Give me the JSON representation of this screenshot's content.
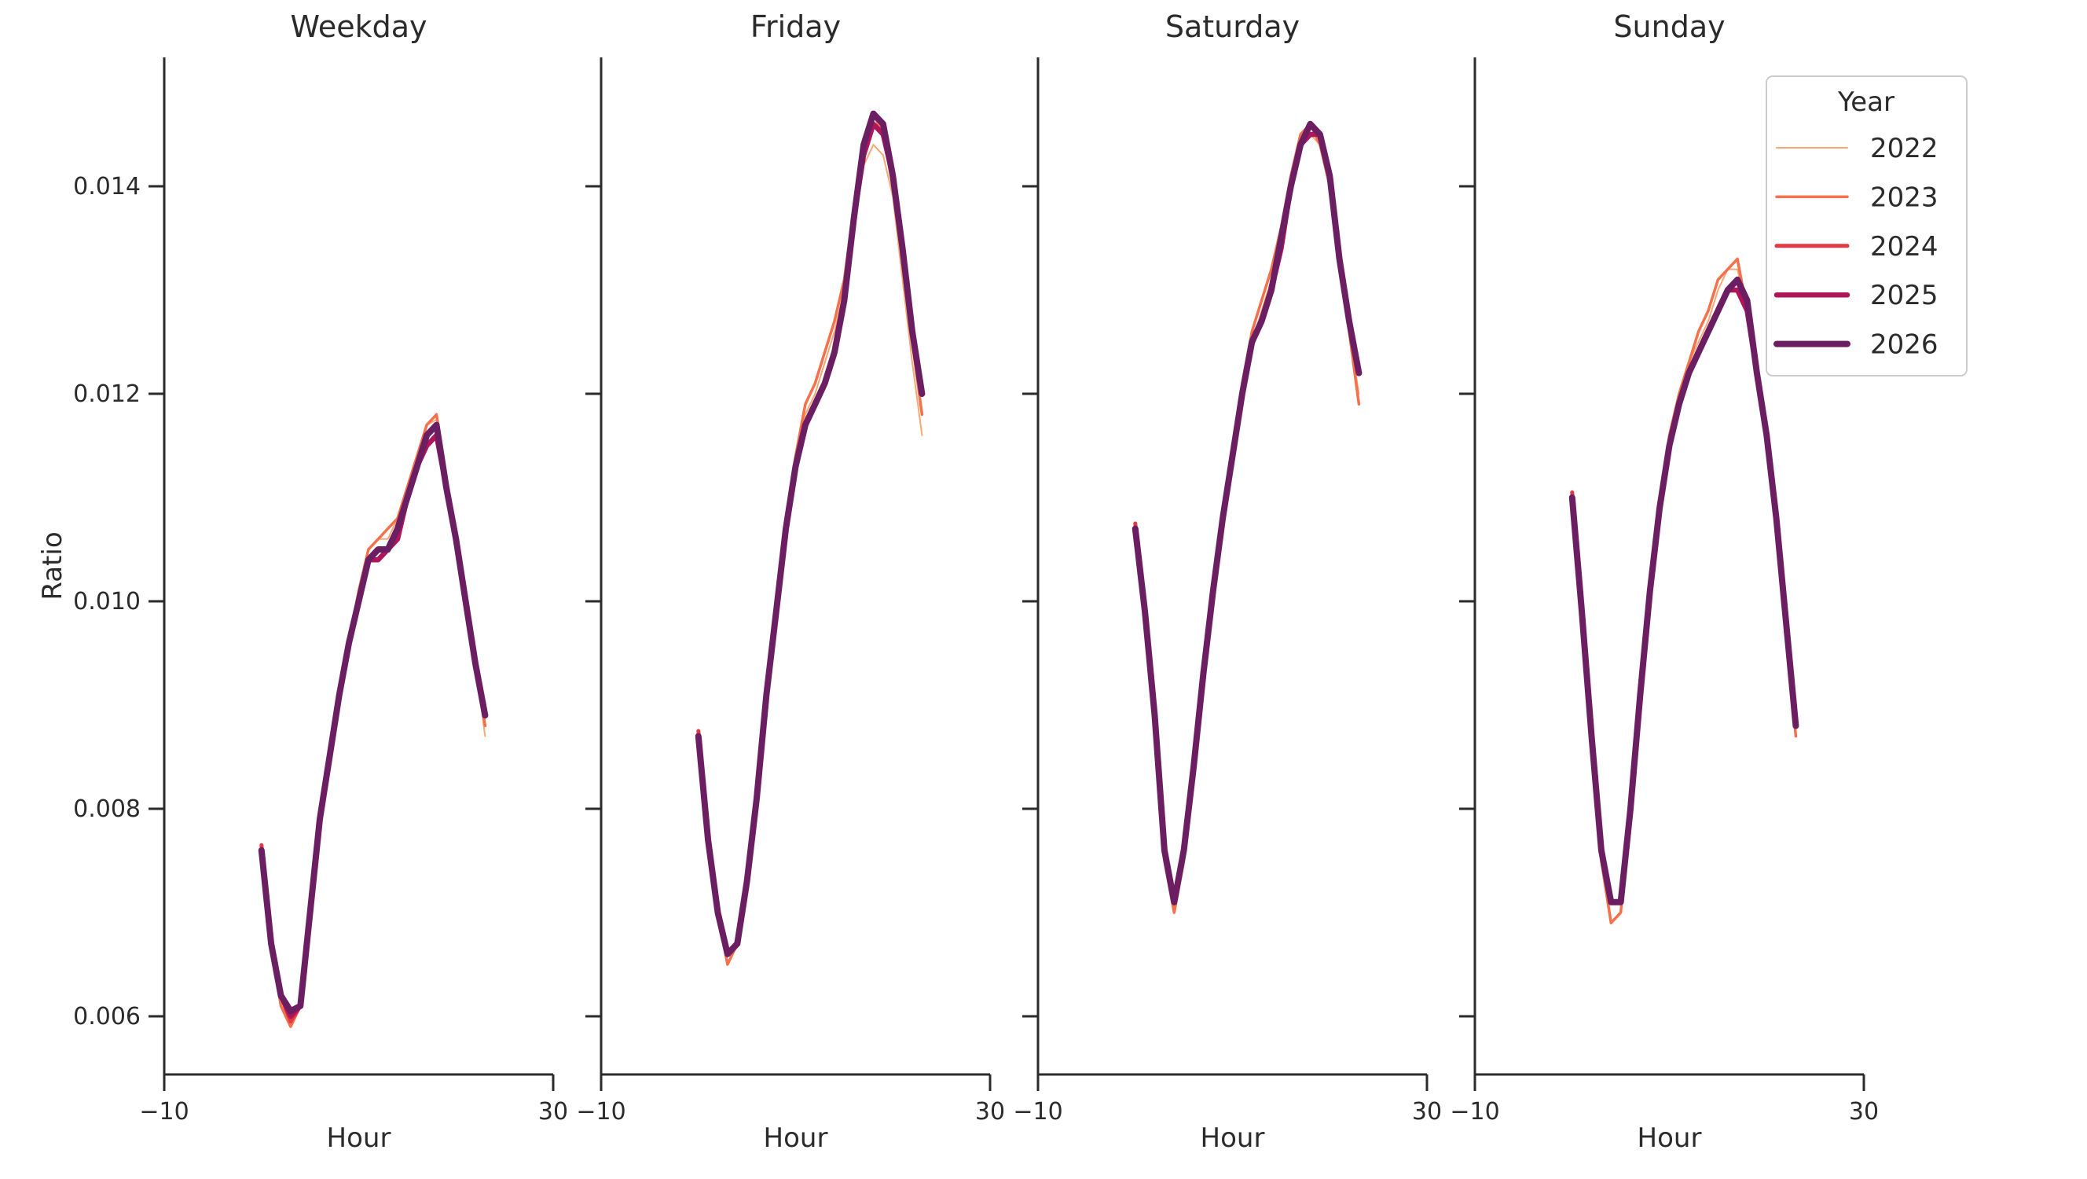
{
  "figure": {
    "background": "#ffffff",
    "text_color": "#2b2b2b",
    "spine_color": "#2b2b2b"
  },
  "legend": {
    "title": "Year",
    "entries": [
      {
        "label": "2022",
        "color": "#F8A873",
        "line_width": 2
      },
      {
        "label": "2023",
        "color": "#F4714C",
        "line_width": 3.5
      },
      {
        "label": "2024",
        "color": "#E23A45",
        "line_width": 5
      },
      {
        "label": "2025",
        "color": "#AE1659",
        "line_width": 6.5
      },
      {
        "label": "2026",
        "color": "#6C1E63",
        "line_width": 8
      }
    ]
  },
  "chart_data": {
    "type": "line",
    "xlabel": "Hour",
    "ylabel": "Ratio",
    "xlim": [
      -10,
      30
    ],
    "ylim": [
      0.0054,
      0.0152
    ],
    "x_ticks": [
      -10,
      30
    ],
    "x_tick_labels": [
      "−10",
      "30"
    ],
    "y_ticks": [
      0.006,
      0.008,
      0.01,
      0.012,
      0.014
    ],
    "y_tick_labels": [
      "0.006",
      "0.008",
      "0.010",
      "0.012",
      "0.014"
    ],
    "grid": false,
    "legend_position": "upper-right-of-last-panel",
    "x": [
      0,
      1,
      2,
      3,
      4,
      5,
      6,
      7,
      8,
      9,
      10,
      11,
      12,
      13,
      14,
      15,
      16,
      17,
      18,
      19,
      20,
      21,
      22,
      23
    ],
    "panels": [
      {
        "title": "Weekday",
        "series": [
          {
            "name": "2022",
            "values": [
              0.0076,
              0.0067,
              0.0061,
              0.0059,
              0.0061,
              0.007,
              0.0079,
              0.0085,
              0.0091,
              0.0096,
              0.01,
              0.0105,
              0.0106,
              0.0106,
              0.0108,
              0.0111,
              0.0114,
              0.0117,
              0.01175,
              0.0112,
              0.0106,
              0.01,
              0.0094,
              0.0087
            ]
          },
          {
            "name": "2023",
            "values": [
              0.0076,
              0.0067,
              0.0061,
              0.0059,
              0.0061,
              0.007,
              0.0079,
              0.0085,
              0.0091,
              0.0096,
              0.0101,
              0.0105,
              0.0106,
              0.0107,
              0.0108,
              0.0111,
              0.0114,
              0.0117,
              0.0118,
              0.0112,
              0.0106,
              0.01,
              0.0094,
              0.0088
            ]
          },
          {
            "name": "2024",
            "values": [
              0.00765,
              0.0067,
              0.0062,
              0.00595,
              0.0061,
              0.007,
              0.0079,
              0.0085,
              0.0091,
              0.0096,
              0.01,
              0.0104,
              0.0105,
              0.0105,
              0.0107,
              0.011,
              0.0113,
              0.0115,
              0.0116,
              0.0111,
              0.0106,
              0.01,
              0.0094,
              0.0089
            ]
          },
          {
            "name": "2025",
            "values": [
              0.0076,
              0.0067,
              0.0062,
              0.006,
              0.0061,
              0.007,
              0.0079,
              0.0085,
              0.0091,
              0.0096,
              0.01,
              0.0104,
              0.0104,
              0.0105,
              0.0106,
              0.011,
              0.0113,
              0.0115,
              0.0116,
              0.0111,
              0.0106,
              0.01,
              0.0094,
              0.0089
            ]
          },
          {
            "name": "2026",
            "values": [
              0.0076,
              0.0067,
              0.0062,
              0.00605,
              0.0061,
              0.007,
              0.0079,
              0.0085,
              0.0091,
              0.0096,
              0.01,
              0.0104,
              0.0105,
              0.0105,
              0.0107,
              0.011,
              0.0113,
              0.0116,
              0.0117,
              0.0111,
              0.0106,
              0.01,
              0.0094,
              0.0089
            ]
          }
        ]
      },
      {
        "title": "Friday",
        "series": [
          {
            "name": "2022",
            "values": [
              0.0087,
              0.0077,
              0.007,
              0.0065,
              0.0067,
              0.0073,
              0.0081,
              0.0091,
              0.01,
              0.0107,
              0.0113,
              0.0118,
              0.012,
              0.0123,
              0.0126,
              0.013,
              0.0136,
              0.0142,
              0.0144,
              0.0143,
              0.0139,
              0.0131,
              0.0123,
              0.0116
            ]
          },
          {
            "name": "2023",
            "values": [
              0.0087,
              0.0077,
              0.007,
              0.0065,
              0.0067,
              0.0073,
              0.0081,
              0.0091,
              0.01,
              0.0108,
              0.0114,
              0.0119,
              0.0121,
              0.0124,
              0.0127,
              0.0131,
              0.0138,
              0.0144,
              0.0147,
              0.0145,
              0.014,
              0.0133,
              0.0125,
              0.0118
            ]
          },
          {
            "name": "2024",
            "values": [
              0.00875,
              0.0077,
              0.007,
              0.0066,
              0.0067,
              0.0073,
              0.0081,
              0.0091,
              0.0099,
              0.0107,
              0.0113,
              0.0117,
              0.0119,
              0.0121,
              0.0124,
              0.0129,
              0.0137,
              0.0144,
              0.0147,
              0.0146,
              0.0141,
              0.0134,
              0.0126,
              0.012
            ]
          },
          {
            "name": "2025",
            "values": [
              0.0087,
              0.0077,
              0.007,
              0.0066,
              0.0067,
              0.0073,
              0.0081,
              0.0091,
              0.0099,
              0.0107,
              0.0113,
              0.0117,
              0.0119,
              0.0121,
              0.0124,
              0.0129,
              0.0137,
              0.0143,
              0.0146,
              0.0145,
              0.0141,
              0.0134,
              0.0126,
              0.012
            ]
          },
          {
            "name": "2026",
            "values": [
              0.0087,
              0.0077,
              0.007,
              0.0066,
              0.0067,
              0.0073,
              0.0081,
              0.0091,
              0.0099,
              0.0107,
              0.0113,
              0.0117,
              0.0119,
              0.0121,
              0.0124,
              0.0129,
              0.0137,
              0.0144,
              0.0147,
              0.0146,
              0.0141,
              0.0134,
              0.0126,
              0.012
            ]
          }
        ]
      },
      {
        "title": "Saturday",
        "series": [
          {
            "name": "2022",
            "values": [
              0.0107,
              0.0099,
              0.0089,
              0.0075,
              0.007,
              0.0075,
              0.0084,
              0.0093,
              0.0101,
              0.0108,
              0.0114,
              0.012,
              0.0125,
              0.0128,
              0.0131,
              0.0135,
              0.014,
              0.0144,
              0.0145,
              0.0144,
              0.014,
              0.0132,
              0.0126,
              0.012
            ]
          },
          {
            "name": "2023",
            "values": [
              0.0107,
              0.0099,
              0.0089,
              0.0075,
              0.007,
              0.0075,
              0.0084,
              0.0093,
              0.0101,
              0.0109,
              0.0115,
              0.0121,
              0.0126,
              0.0129,
              0.0132,
              0.0136,
              0.0141,
              0.0145,
              0.0146,
              0.0144,
              0.014,
              0.0133,
              0.0126,
              0.0119
            ]
          },
          {
            "name": "2024",
            "values": [
              0.01075,
              0.0099,
              0.0089,
              0.0076,
              0.0071,
              0.0076,
              0.0084,
              0.0093,
              0.0101,
              0.0108,
              0.0114,
              0.012,
              0.0125,
              0.0127,
              0.013,
              0.0135,
              0.014,
              0.0144,
              0.0146,
              0.0145,
              0.0141,
              0.0133,
              0.0127,
              0.0122
            ]
          },
          {
            "name": "2025",
            "values": [
              0.0107,
              0.0099,
              0.0089,
              0.0076,
              0.0071,
              0.0076,
              0.0084,
              0.0093,
              0.0101,
              0.0108,
              0.0114,
              0.012,
              0.0125,
              0.0127,
              0.013,
              0.0134,
              0.014,
              0.0144,
              0.0145,
              0.0145,
              0.0141,
              0.0133,
              0.0127,
              0.0122
            ]
          },
          {
            "name": "2026",
            "values": [
              0.0107,
              0.0099,
              0.0089,
              0.0076,
              0.0071,
              0.0076,
              0.0084,
              0.0093,
              0.0101,
              0.0108,
              0.0114,
              0.012,
              0.0125,
              0.0127,
              0.013,
              0.0135,
              0.014,
              0.0144,
              0.0146,
              0.0145,
              0.0141,
              0.0133,
              0.0127,
              0.0122
            ]
          }
        ]
      },
      {
        "title": "Sunday",
        "series": [
          {
            "name": "2022",
            "values": [
              0.011,
              0.0099,
              0.0087,
              0.0075,
              0.0069,
              0.007,
              0.008,
              0.0091,
              0.0101,
              0.0109,
              0.0115,
              0.012,
              0.0123,
              0.0125,
              0.0127,
              0.013,
              0.0132,
              0.0132,
              0.0128,
              0.0122,
              0.0116,
              0.0108,
              0.0098,
              0.0087
            ]
          },
          {
            "name": "2023",
            "values": [
              0.011,
              0.0099,
              0.0087,
              0.0075,
              0.0069,
              0.007,
              0.008,
              0.0091,
              0.0101,
              0.0109,
              0.0116,
              0.012,
              0.0123,
              0.0126,
              0.0128,
              0.0131,
              0.0132,
              0.0133,
              0.0128,
              0.0122,
              0.0116,
              0.0108,
              0.0098,
              0.0087
            ]
          },
          {
            "name": "2024",
            "values": [
              0.01105,
              0.0099,
              0.0087,
              0.0076,
              0.0071,
              0.0071,
              0.008,
              0.0091,
              0.0101,
              0.0109,
              0.0115,
              0.0119,
              0.0122,
              0.0124,
              0.0126,
              0.0128,
              0.013,
              0.013,
              0.0128,
              0.0122,
              0.0116,
              0.0108,
              0.0098,
              0.0088
            ]
          },
          {
            "name": "2025",
            "values": [
              0.011,
              0.0099,
              0.0087,
              0.0076,
              0.0071,
              0.0071,
              0.008,
              0.0091,
              0.0101,
              0.0109,
              0.0115,
              0.0119,
              0.0122,
              0.0124,
              0.0126,
              0.0128,
              0.013,
              0.013,
              0.0128,
              0.0122,
              0.0116,
              0.0108,
              0.0098,
              0.0088
            ]
          },
          {
            "name": "2026",
            "values": [
              0.011,
              0.0099,
              0.0087,
              0.0076,
              0.0071,
              0.0071,
              0.008,
              0.0091,
              0.0101,
              0.0109,
              0.0115,
              0.0119,
              0.0122,
              0.0124,
              0.0126,
              0.0128,
              0.013,
              0.0131,
              0.0129,
              0.0122,
              0.0116,
              0.0108,
              0.0098,
              0.0088
            ]
          }
        ]
      }
    ]
  }
}
